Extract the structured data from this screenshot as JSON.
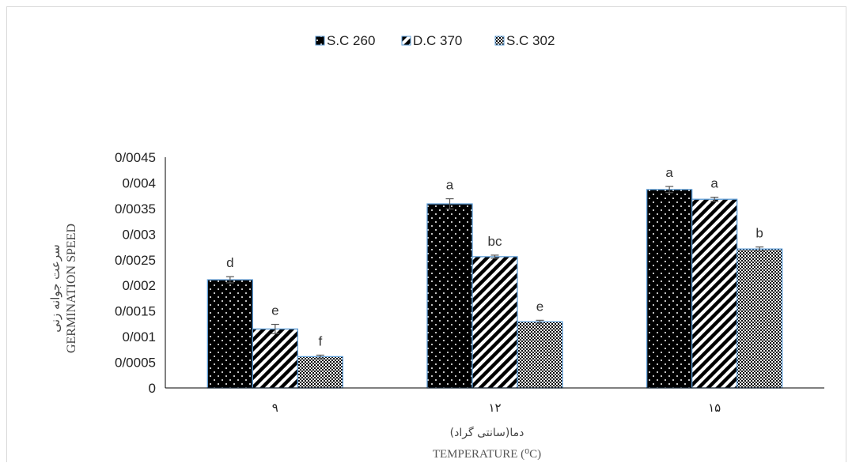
{
  "chart_data": {
    "type": "bar",
    "categories": [
      "۹",
      "۱۲",
      "۱۵"
    ],
    "series": [
      {
        "name": "S.C 260",
        "values": [
          0.00211,
          0.00359,
          0.00387
        ],
        "errors": [
          6e-05,
          0.0001,
          6e-05
        ],
        "letters": [
          "d",
          "a",
          "a"
        ],
        "pattern": "dots"
      },
      {
        "name": "D.C 370",
        "values": [
          0.00115,
          0.00256,
          0.00368
        ],
        "errors": [
          9e-05,
          3e-05,
          4e-05
        ],
        "letters": [
          "e",
          "bc",
          "a"
        ],
        "pattern": "diagonal"
      },
      {
        "name": "S.C 302",
        "values": [
          0.00061,
          0.00129,
          0.00271
        ],
        "errors": [
          3e-05,
          3e-05,
          4e-05
        ],
        "letters": [
          "f",
          "e",
          "b"
        ],
        "pattern": "checker"
      }
    ],
    "ylim": [
      0,
      0.0045
    ],
    "yticks": [
      "0",
      "0/0005",
      "0/001",
      "0/0015",
      "0/002",
      "0/0025",
      "0/003",
      "0/0035",
      "0/004",
      "0/0045"
    ],
    "ylabel_fa": "سرعت جوانه زنی",
    "ylabel_en": "GERMINATION SPEED",
    "xlabel_fa": "دما(سانتی گراد)",
    "xlabel_en": "TEMPERATURE (⁰C)",
    "legend_position": "top",
    "grid": false,
    "colors": {
      "bar_fill": "#000000",
      "bar_outline": "#5b9bd5",
      "error_bar": "#555555",
      "axis": "#000000"
    }
  }
}
